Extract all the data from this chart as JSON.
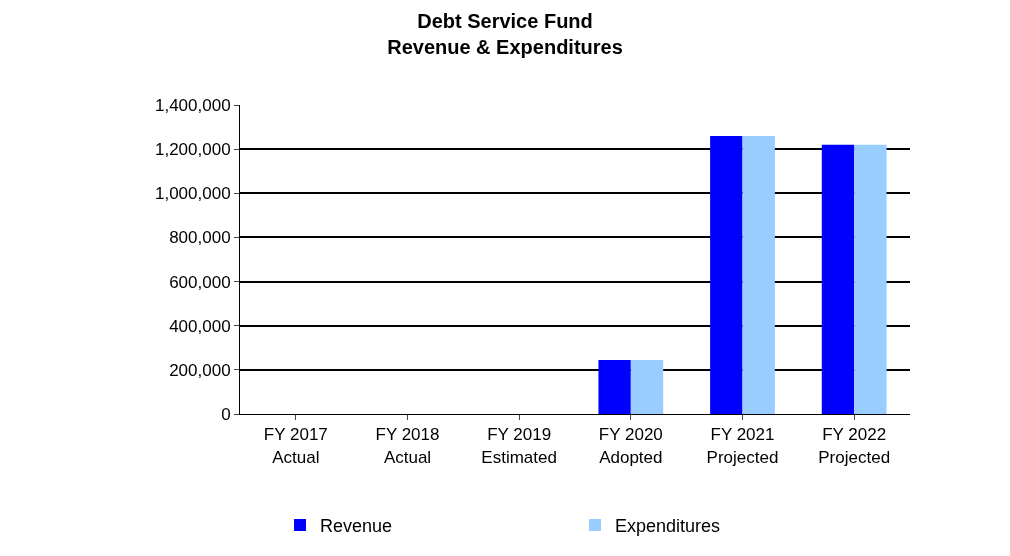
{
  "chart_data": {
    "type": "bar",
    "title": "Debt Service Fund\nRevenue & Expenditures",
    "categories": [
      "FY 2017\nActual",
      "FY 2018\nActual",
      "FY 2019\nEstimated",
      "FY 2020\nAdopted",
      "FY 2021\nProjected",
      "FY 2022\nProjected"
    ],
    "series": [
      {
        "name": "Revenue",
        "color": "#0000ff",
        "values": [
          0,
          0,
          0,
          245000,
          1260000,
          1220000
        ]
      },
      {
        "name": "Expenditures",
        "color": "#99ccff",
        "values": [
          0,
          0,
          0,
          245000,
          1260000,
          1220000
        ]
      }
    ],
    "ylim": [
      0,
      1400000
    ],
    "yticks": [
      {
        "value": 0,
        "label": "0"
      },
      {
        "value": 200000,
        "label": "200,000"
      },
      {
        "value": 400000,
        "label": "400,000"
      },
      {
        "value": 600000,
        "label": "600,000"
      },
      {
        "value": 800000,
        "label": "800,000"
      },
      {
        "value": 1000000,
        "label": "1,000,000"
      },
      {
        "value": 1200000,
        "label": "1,200,000"
      },
      {
        "value": 1400000,
        "label": "1,400,000"
      }
    ],
    "grid": "y",
    "legend": "bottom"
  }
}
